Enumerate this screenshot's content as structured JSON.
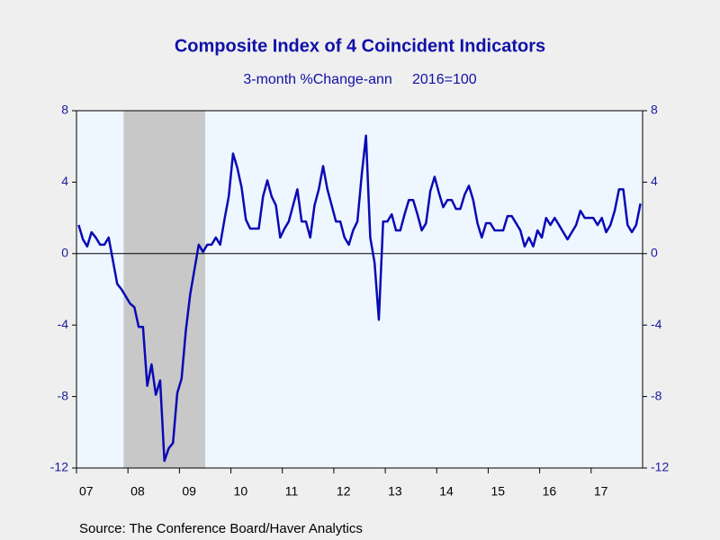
{
  "chart_data": {
    "type": "line",
    "title": "Composite Index of 4 Coincident Indicators",
    "subtitle": "3-month %Change-ann     2016=100",
    "source": "Source:  The Conference Board/Haver Analytics",
    "x": [
      "2007-01",
      "2007-02",
      "2007-03",
      "2007-04",
      "2007-05",
      "2007-06",
      "2007-07",
      "2007-08",
      "2007-09",
      "2007-10",
      "2007-11",
      "2007-12",
      "2008-01",
      "2008-02",
      "2008-03",
      "2008-04",
      "2008-05",
      "2008-06",
      "2008-07",
      "2008-08",
      "2008-09",
      "2008-10",
      "2008-11",
      "2008-12",
      "2009-01",
      "2009-02",
      "2009-03",
      "2009-04",
      "2009-05",
      "2009-06",
      "2009-07",
      "2009-08",
      "2009-09",
      "2009-10",
      "2009-11",
      "2009-12",
      "2010-01",
      "2010-02",
      "2010-03",
      "2010-04",
      "2010-05",
      "2010-06",
      "2010-07",
      "2010-08",
      "2010-09",
      "2010-10",
      "2010-11",
      "2010-12",
      "2011-01",
      "2011-02",
      "2011-03",
      "2011-04",
      "2011-05",
      "2011-06",
      "2011-07",
      "2011-08",
      "2011-09",
      "2011-10",
      "2011-11",
      "2011-12",
      "2012-01",
      "2012-02",
      "2012-03",
      "2012-04",
      "2012-05",
      "2012-06",
      "2012-07",
      "2012-08",
      "2012-09",
      "2012-10",
      "2012-11",
      "2012-12",
      "2013-01",
      "2013-02",
      "2013-03",
      "2013-04",
      "2013-05",
      "2013-06",
      "2013-07",
      "2013-08",
      "2013-09",
      "2013-10",
      "2013-11",
      "2013-12",
      "2014-01",
      "2014-02",
      "2014-03",
      "2014-04",
      "2014-05",
      "2014-06",
      "2014-07",
      "2014-08",
      "2014-09",
      "2014-10",
      "2014-11",
      "2014-12",
      "2015-01",
      "2015-02",
      "2015-03",
      "2015-04",
      "2015-05",
      "2015-06",
      "2015-07",
      "2015-08",
      "2015-09",
      "2015-10",
      "2015-11",
      "2015-12",
      "2016-01",
      "2016-02",
      "2016-03",
      "2016-04",
      "2016-05",
      "2016-06",
      "2016-07",
      "2016-08",
      "2016-09",
      "2016-10",
      "2016-11",
      "2016-12",
      "2017-01",
      "2017-02",
      "2017-03",
      "2017-04",
      "2017-05",
      "2017-06",
      "2017-07",
      "2017-08",
      "2017-09",
      "2017-10",
      "2017-11",
      "2017-12"
    ],
    "series": [
      {
        "color": "#0a0ab4",
        "values": [
          1.6,
          0.8,
          0.4,
          1.2,
          0.9,
          0.5,
          0.5,
          0.9,
          -0.4,
          -1.7,
          -2.0,
          -2.4,
          -2.8,
          -3.0,
          -4.1,
          -4.1,
          -7.4,
          -6.2,
          -7.9,
          -7.1,
          -11.6,
          -10.9,
          -10.6,
          -7.8,
          -7.0,
          -4.3,
          -2.3,
          -0.9,
          0.5,
          0.1,
          0.5,
          0.5,
          0.9,
          0.5,
          1.9,
          3.2,
          5.6,
          4.8,
          3.7,
          1.9,
          1.4,
          1.4,
          1.4,
          3.2,
          4.1,
          3.2,
          2.7,
          0.9,
          1.4,
          1.8,
          2.7,
          3.6,
          1.8,
          1.8,
          0.9,
          2.7,
          3.6,
          4.9,
          3.6,
          2.7,
          1.8,
          1.8,
          0.9,
          0.5,
          1.3,
          1.8,
          4.4,
          6.6,
          0.9,
          -0.5,
          -3.7,
          1.8,
          1.8,
          2.2,
          1.3,
          1.3,
          2.2,
          3.0,
          3.0,
          2.2,
          1.3,
          1.7,
          3.5,
          4.3,
          3.4,
          2.6,
          3.0,
          3.0,
          2.5,
          2.5,
          3.3,
          3.8,
          3.0,
          1.7,
          0.9,
          1.7,
          1.7,
          1.3,
          1.3,
          1.3,
          2.1,
          2.1,
          1.7,
          1.3,
          0.4,
          0.9,
          0.4,
          1.3,
          0.9,
          2.0,
          1.6,
          2.0,
          1.6,
          1.2,
          0.8,
          1.2,
          1.6,
          2.4,
          2.0,
          2.0,
          2.0,
          1.6,
          2.0,
          1.2,
          1.6,
          2.4,
          3.6,
          3.6,
          1.6,
          1.2,
          1.6,
          2.8
        ]
      }
    ],
    "recession": [
      "2007-12",
      "2009-06"
    ],
    "recession_color": "#c8c8c8",
    "xticks": [
      {
        "value": "2007-01",
        "label": "07"
      },
      {
        "value": "2008-01",
        "label": "08"
      },
      {
        "value": "2009-01",
        "label": "09"
      },
      {
        "value": "2010-01",
        "label": "10"
      },
      {
        "value": "2011-01",
        "label": "11"
      },
      {
        "value": "2012-01",
        "label": "12"
      },
      {
        "value": "2013-01",
        "label": "13"
      },
      {
        "value": "2014-01",
        "label": "14"
      },
      {
        "value": "2015-01",
        "label": "15"
      },
      {
        "value": "2016-01",
        "label": "16"
      },
      {
        "value": "2017-01",
        "label": "17"
      }
    ],
    "ylim": [
      -12,
      8
    ],
    "yticks": [
      -12,
      -8,
      -4,
      0,
      4,
      8
    ],
    "y2lim": [
      -12,
      8
    ],
    "y2ticks": [
      -12,
      -8,
      -4,
      0,
      4,
      8
    ]
  }
}
